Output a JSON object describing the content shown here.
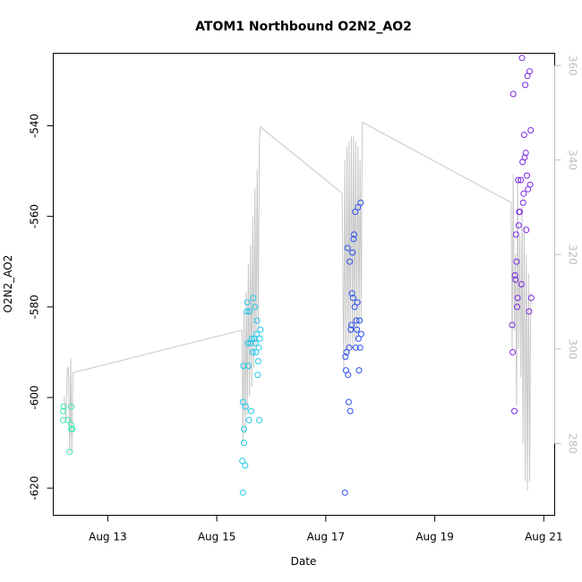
{
  "chart_data": {
    "type": "scatter",
    "title": "ATOM1 Northbound O2N2_AO2",
    "xlabel": "Date",
    "ylabel": "O2N2_AO2",
    "x_ticks": [
      "Aug 13",
      "Aug 15",
      "Aug 17",
      "Aug 19",
      "Aug 21"
    ],
    "x_tick_values": [
      13,
      15,
      17,
      19,
      21
    ],
    "xlim": [
      12.0,
      21.2
    ],
    "y_ticks": [
      -540,
      -560,
      -580,
      -600,
      -620
    ],
    "ylim": [
      -626,
      -524
    ],
    "y_right_ticks": [
      360,
      340,
      320,
      300,
      280
    ],
    "y_right_lim": [
      264.8,
      362.6
    ],
    "grid": false,
    "series": [
      {
        "color": "#3ee8b0",
        "points": [
          [
            12.18,
            -603
          ],
          [
            12.18,
            -605
          ],
          [
            12.19,
            -602
          ],
          [
            12.27,
            -605
          ],
          [
            12.3,
            -612
          ],
          [
            12.33,
            -602
          ],
          [
            12.33,
            -606
          ],
          [
            12.33,
            -607
          ],
          [
            12.35,
            -607
          ]
        ]
      },
      {
        "color": "#1ec8ea",
        "points": [
          [
            15.48,
            -621
          ],
          [
            15.47,
            -614
          ],
          [
            15.48,
            -601
          ],
          [
            15.49,
            -593
          ],
          [
            15.5,
            -607
          ],
          [
            15.5,
            -610
          ],
          [
            15.52,
            -615
          ],
          [
            15.53,
            -602
          ],
          [
            15.55,
            -581
          ],
          [
            15.56,
            -579
          ],
          [
            15.57,
            -588
          ],
          [
            15.58,
            -593
          ],
          [
            15.59,
            -605
          ],
          [
            15.6,
            -581
          ],
          [
            15.62,
            -588
          ],
          [
            15.63,
            -603
          ],
          [
            15.64,
            -587
          ],
          [
            15.66,
            -590
          ],
          [
            15.67,
            -578
          ],
          [
            15.69,
            -587
          ],
          [
            15.7,
            -580
          ],
          [
            15.71,
            -588
          ],
          [
            15.72,
            -590
          ],
          [
            15.73,
            -586
          ],
          [
            15.74,
            -583
          ],
          [
            15.75,
            -595
          ],
          [
            15.76,
            -592
          ],
          [
            15.77,
            -589
          ],
          [
            15.78,
            -605
          ],
          [
            15.79,
            -587
          ],
          [
            15.8,
            -585
          ]
        ]
      },
      {
        "color": "#2b50e8",
        "points": [
          [
            17.35,
            -621
          ],
          [
            17.36,
            -591
          ],
          [
            17.37,
            -594
          ],
          [
            17.38,
            -590
          ],
          [
            17.4,
            -567
          ],
          [
            17.41,
            -595
          ],
          [
            17.42,
            -601
          ],
          [
            17.43,
            -589
          ],
          [
            17.44,
            -570
          ],
          [
            17.45,
            -603
          ],
          [
            17.46,
            -585
          ],
          [
            17.47,
            -584
          ],
          [
            17.48,
            -577
          ],
          [
            17.49,
            -568
          ],
          [
            17.5,
            -578
          ],
          [
            17.51,
            -565
          ],
          [
            17.52,
            -564
          ],
          [
            17.53,
            -580
          ],
          [
            17.54,
            -559
          ],
          [
            17.55,
            -589
          ],
          [
            17.56,
            -583
          ],
          [
            17.57,
            -585
          ],
          [
            17.58,
            -579
          ],
          [
            17.59,
            -558
          ],
          [
            17.6,
            -587
          ],
          [
            17.61,
            -594
          ],
          [
            17.62,
            -583
          ],
          [
            17.63,
            -589
          ],
          [
            17.64,
            -557
          ],
          [
            17.65,
            -586
          ]
        ]
      },
      {
        "color": "#7a28e0",
        "points": [
          [
            20.42,
            -584
          ],
          [
            20.43,
            -590
          ],
          [
            20.44,
            -533
          ],
          [
            20.46,
            -603
          ],
          [
            20.47,
            -573
          ],
          [
            20.48,
            -574
          ],
          [
            20.49,
            -564
          ],
          [
            20.5,
            -570
          ],
          [
            20.51,
            -580
          ],
          [
            20.52,
            -578
          ],
          [
            20.53,
            -552
          ],
          [
            20.54,
            -562
          ],
          [
            20.55,
            -559
          ],
          [
            20.56,
            -559
          ],
          [
            20.58,
            -552
          ],
          [
            20.59,
            -575
          ],
          [
            20.6,
            -525
          ],
          [
            20.61,
            -548
          ],
          [
            20.62,
            -557
          ],
          [
            20.63,
            -555
          ],
          [
            20.64,
            -542
          ],
          [
            20.65,
            -547
          ],
          [
            20.66,
            -531
          ],
          [
            20.67,
            -546
          ],
          [
            20.68,
            -563
          ],
          [
            20.69,
            -551
          ],
          [
            20.7,
            -529
          ],
          [
            20.71,
            -554
          ],
          [
            20.73,
            -581
          ],
          [
            20.74,
            -528
          ],
          [
            20.75,
            -553
          ],
          [
            20.76,
            -541
          ],
          [
            20.77,
            -578
          ]
        ]
      }
    ],
    "secondary_line": {
      "axis": "right",
      "color": "#c8c8c8",
      "points": [
        [
          12.2,
          290
        ],
        [
          12.23,
          285
        ],
        [
          12.26,
          296
        ],
        [
          12.28,
          296
        ],
        [
          12.3,
          278
        ],
        [
          12.32,
          298
        ],
        [
          12.34,
          278
        ],
        [
          12.36,
          295
        ],
        [
          15.46,
          304
        ],
        [
          15.48,
          280
        ],
        [
          15.5,
          308
        ],
        [
          15.52,
          282
        ],
        [
          15.54,
          312
        ],
        [
          15.56,
          286
        ],
        [
          15.58,
          318
        ],
        [
          15.6,
          290
        ],
        [
          15.62,
          322
        ],
        [
          15.64,
          292
        ],
        [
          15.66,
          328
        ],
        [
          15.68,
          296
        ],
        [
          15.7,
          334
        ],
        [
          15.72,
          300
        ],
        [
          15.74,
          338
        ],
        [
          15.76,
          304
        ],
        [
          15.78,
          343
        ],
        [
          15.8,
          347
        ],
        [
          17.3,
          333
        ],
        [
          17.33,
          296
        ],
        [
          17.35,
          340
        ],
        [
          17.37,
          298
        ],
        [
          17.39,
          343
        ],
        [
          17.41,
          299
        ],
        [
          17.43,
          344
        ],
        [
          17.45,
          300
        ],
        [
          17.47,
          345
        ],
        [
          17.49,
          300
        ],
        [
          17.51,
          345
        ],
        [
          17.53,
          301
        ],
        [
          17.55,
          344
        ],
        [
          17.57,
          302
        ],
        [
          17.59,
          343
        ],
        [
          17.61,
          304
        ],
        [
          17.63,
          340
        ],
        [
          17.65,
          306
        ],
        [
          17.67,
          348
        ],
        [
          20.4,
          331
        ],
        [
          20.42,
          300
        ],
        [
          20.44,
          337
        ],
        [
          20.46,
          304
        ],
        [
          20.48,
          320
        ],
        [
          20.5,
          288
        ],
        [
          20.52,
          336
        ],
        [
          20.54,
          300
        ],
        [
          20.56,
          324
        ],
        [
          20.58,
          294
        ],
        [
          20.6,
          330
        ],
        [
          20.62,
          280
        ],
        [
          20.64,
          326
        ],
        [
          20.66,
          272
        ],
        [
          20.68,
          320
        ],
        [
          20.7,
          270
        ],
        [
          20.72,
          316
        ],
        [
          20.74,
          272
        ],
        [
          20.76,
          312
        ]
      ]
    }
  }
}
